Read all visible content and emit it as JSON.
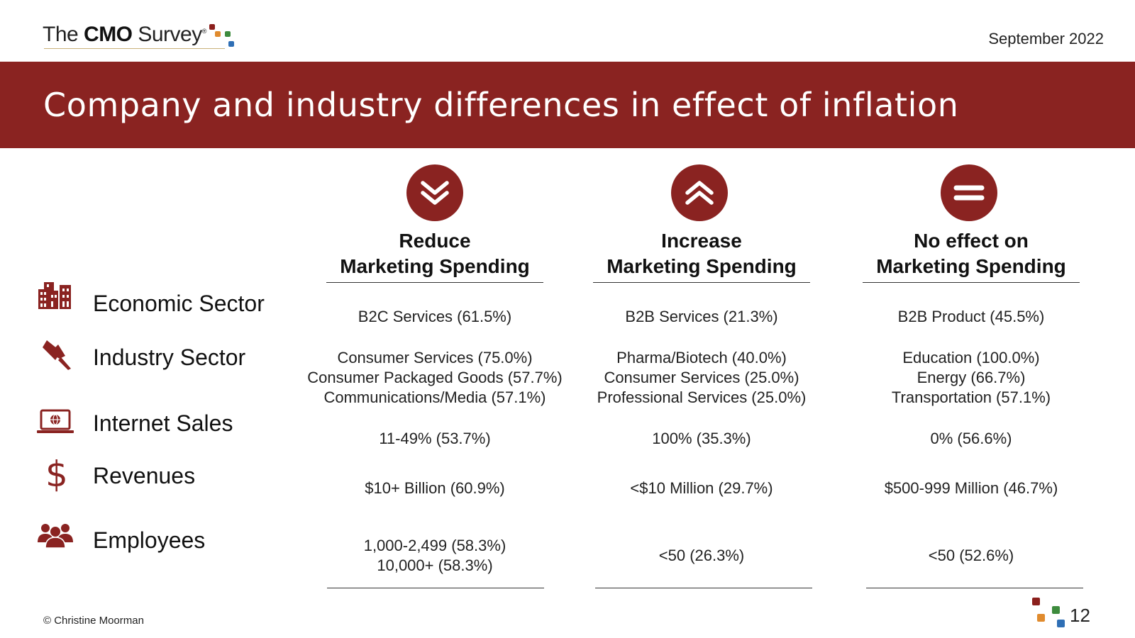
{
  "header": {
    "logo_prefix": "The ",
    "logo_bold": "CMO",
    "logo_suffix": " Survey",
    "logo_mark": "®",
    "date": "September 2022"
  },
  "title": "Company and industry differences in effect of inflation",
  "columns": [
    {
      "icon": "double-chevron-down-icon",
      "line1": "Reduce",
      "line2": "Marketing Spending"
    },
    {
      "icon": "double-chevron-up-icon",
      "line1": "Increase",
      "line2": "Marketing Spending"
    },
    {
      "icon": "equals-icon",
      "line1": "No effect on",
      "line2": "Marketing Spending"
    }
  ],
  "rows": [
    {
      "label": "Economic Sector",
      "icon": "buildings-icon",
      "cells": [
        [
          "B2C Services (61.5%)"
        ],
        [
          "B2B Services (21.3%)"
        ],
        [
          "B2B Product (45.5%)"
        ]
      ]
    },
    {
      "label": "Industry Sector",
      "icon": "pushpin-icon",
      "cells": [
        [
          "Consumer Services (75.0%)",
          "Consumer Packaged Goods (57.7%)",
          "Communications/Media (57.1%)"
        ],
        [
          "Pharma/Biotech (40.0%)",
          "Consumer Services (25.0%)",
          "Professional Services (25.0%)"
        ],
        [
          "Education (100.0%)",
          "Energy (66.7%)",
          "Transportation (57.1%)"
        ]
      ]
    },
    {
      "label": "Internet Sales",
      "icon": "laptop-globe-icon",
      "cells": [
        [
          "11-49% (53.7%)"
        ],
        [
          "100% (35.3%)"
        ],
        [
          "0% (56.6%)"
        ]
      ]
    },
    {
      "label": "Revenues",
      "icon": "dollar-icon",
      "cells": [
        [
          "$10+ Billion (60.9%)"
        ],
        [
          "<$10 Million (29.7%)"
        ],
        [
          "$500-999 Million (46.7%)"
        ]
      ]
    },
    {
      "label": "Employees",
      "icon": "people-group-icon",
      "cells": [
        [
          "1,000-2,499 (58.3%)",
          "10,000+ (58.3%)"
        ],
        [
          "<50 (26.3%)"
        ],
        [
          "<50 (52.6%)"
        ]
      ]
    }
  ],
  "footer": {
    "copyright": "© Christine Moorman",
    "page_number": "12"
  },
  "colors": {
    "brand_red": "#8a2321",
    "logo_red": "#8b1f1c",
    "logo_orange": "#e08b2e",
    "logo_green": "#3d8b3d",
    "logo_blue": "#2f6fb5"
  }
}
